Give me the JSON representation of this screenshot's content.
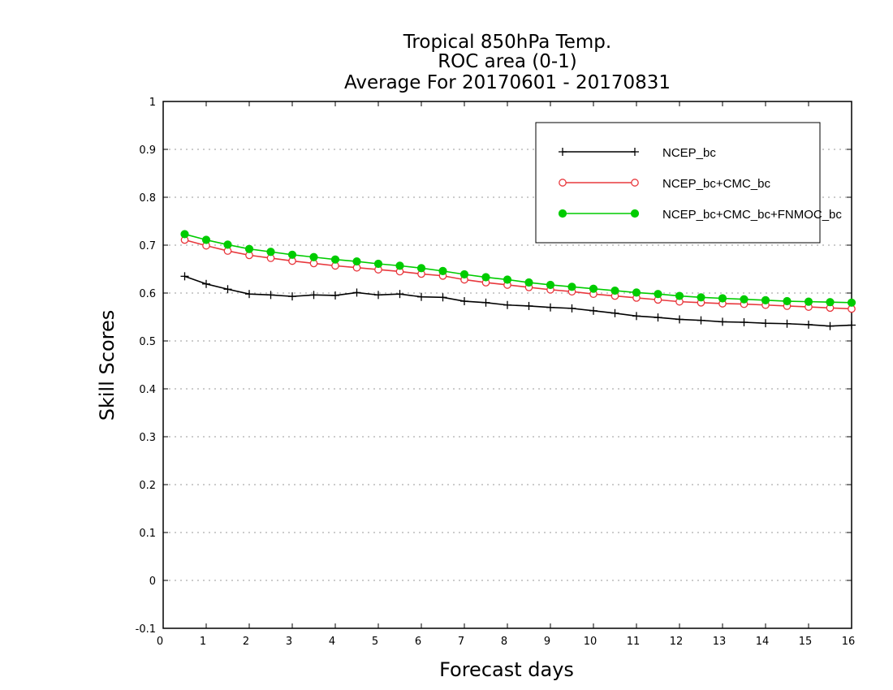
{
  "chart_data": {
    "type": "line",
    "title_lines": [
      "Tropical 850hPa Temp.",
      "ROC area (0-1)",
      "Average For 20170601 - 20170831"
    ],
    "xlabel": "Forecast days",
    "ylabel": "Skill Scores",
    "xlim": [
      0,
      16
    ],
    "ylim": [
      -0.1,
      1
    ],
    "xticks": [
      "0",
      "1",
      "2",
      "3",
      "4",
      "5",
      "6",
      "7",
      "8",
      "9",
      "10",
      "11",
      "12",
      "13",
      "14",
      "15",
      "16"
    ],
    "yticks": [
      "-0.1",
      "0",
      "0.1",
      "0.2",
      "0.3",
      "0.4",
      "0.5",
      "0.6",
      "0.7",
      "0.8",
      "0.9",
      "1"
    ],
    "grid": "horizontal dotted",
    "legend_position": "top-right",
    "x": [
      0.5,
      1,
      1.5,
      2,
      2.5,
      3,
      3.5,
      4,
      4.5,
      5,
      5.5,
      6,
      6.5,
      7,
      7.5,
      8,
      8.5,
      9,
      9.5,
      10,
      10.5,
      11,
      11.5,
      12,
      12.5,
      13,
      13.5,
      14,
      14.5,
      15,
      15.5,
      16
    ],
    "series": [
      {
        "name": "NCEP_bc",
        "color": "#000000",
        "marker": "plus",
        "values": [
          0.635,
          0.619,
          0.608,
          0.598,
          0.596,
          0.593,
          0.596,
          0.595,
          0.601,
          0.596,
          0.598,
          0.592,
          0.591,
          0.583,
          0.58,
          0.575,
          0.573,
          0.57,
          0.568,
          0.563,
          0.558,
          0.552,
          0.549,
          0.545,
          0.543,
          0.54,
          0.539,
          0.537,
          0.536,
          0.534,
          0.531,
          0.533
        ]
      },
      {
        "name": "NCEP_bc+CMC_bc",
        "color": "#e8383d",
        "marker": "open-circle",
        "values": [
          0.711,
          0.699,
          0.688,
          0.679,
          0.673,
          0.667,
          0.662,
          0.657,
          0.653,
          0.649,
          0.645,
          0.64,
          0.636,
          0.628,
          0.622,
          0.617,
          0.612,
          0.607,
          0.603,
          0.598,
          0.594,
          0.59,
          0.586,
          0.582,
          0.58,
          0.578,
          0.577,
          0.575,
          0.573,
          0.571,
          0.569,
          0.567
        ]
      },
      {
        "name": "NCEP_bc+CMC_bc+FNMOC_bc",
        "color": "#00cc00",
        "marker": "filled-circle",
        "values": [
          0.723,
          0.711,
          0.701,
          0.692,
          0.686,
          0.68,
          0.675,
          0.67,
          0.666,
          0.661,
          0.657,
          0.652,
          0.646,
          0.639,
          0.633,
          0.628,
          0.622,
          0.617,
          0.613,
          0.609,
          0.605,
          0.601,
          0.598,
          0.594,
          0.591,
          0.589,
          0.587,
          0.585,
          0.583,
          0.582,
          0.581,
          0.58
        ]
      }
    ]
  }
}
